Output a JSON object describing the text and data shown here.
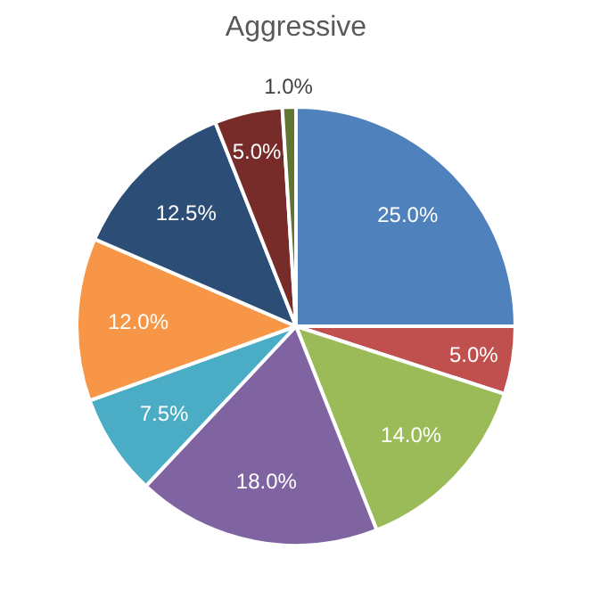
{
  "chart_data": {
    "type": "pie",
    "title": "Aggressive",
    "categories": [
      null,
      null,
      null,
      null,
      null,
      null,
      null,
      null,
      null
    ],
    "values": [
      25,
      5,
      14,
      18,
      7.5,
      12,
      12.5,
      5,
      1
    ],
    "colors": [
      "#4f81bd",
      "#c0504d",
      "#9bbb59",
      "#8064a2",
      "#4bacc6",
      "#f79646",
      "#2c4d75",
      "#772c2a",
      "#5f7530"
    ],
    "value_labels": [
      "25.0%",
      "5.0%",
      "14.0%",
      "18.0%",
      "7.5%",
      "12.0%",
      "12.5%",
      "5.0%",
      "1.0%"
    ]
  }
}
